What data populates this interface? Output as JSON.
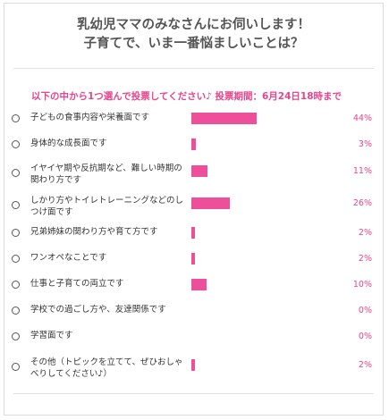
{
  "poll": {
    "title_line1": "乳幼児ママのみなさんにお伺いします！",
    "title_line2": "子育てで、いま一番悩ましいことは？",
    "instruction": "以下の中から1つ選んで投票してください♪ 投票期間：6月24日18時まで",
    "accent_color": "#e8448e",
    "bar_color": "#ee4f9b",
    "options": [
      {
        "label": "子どもの食事内容や栄養面です",
        "percent": 44,
        "percent_text": "44%"
      },
      {
        "label": "身体的な成長面です",
        "percent": 3,
        "percent_text": "3%"
      },
      {
        "label": "イヤイヤ期や反抗期など、難しい時期の関わり方です",
        "percent": 11,
        "percent_text": "11%"
      },
      {
        "label": "しかり方やトイレトレーニングなどのしつけ面です",
        "percent": 26,
        "percent_text": "26%"
      },
      {
        "label": "兄弟姉妹の関わり方や育て方です",
        "percent": 2,
        "percent_text": "2%"
      },
      {
        "label": "ワンオペなことです",
        "percent": 2,
        "percent_text": "2%"
      },
      {
        "label": "仕事と子育ての両立です",
        "percent": 10,
        "percent_text": "10%"
      },
      {
        "label": "学校での過ごし方や、友達関係です",
        "percent": 0,
        "percent_text": "0%"
      },
      {
        "label": "学習面です",
        "percent": 0,
        "percent_text": "0%"
      },
      {
        "label": "その他（トピックを立てて、ぜひおしゃべりしてください♪）",
        "percent": 2,
        "percent_text": "2%"
      }
    ]
  }
}
